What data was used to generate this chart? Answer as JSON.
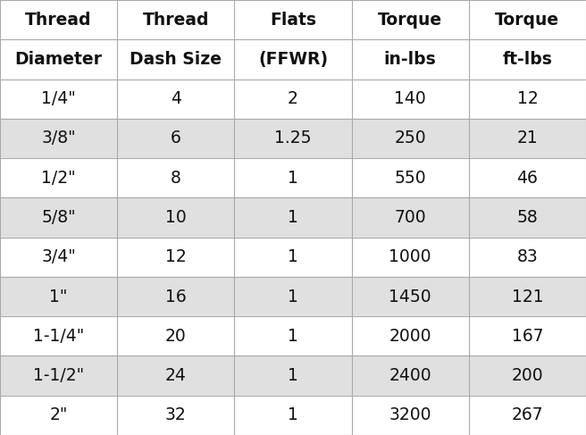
{
  "col_headers_line1": [
    "Thread",
    "Thread",
    "Flats",
    "Torque",
    "Torque"
  ],
  "col_headers_line2": [
    "Diameter",
    "Dash Size",
    "(FFWR)",
    "in-lbs",
    "ft-lbs"
  ],
  "rows": [
    [
      "1/4\"",
      "4",
      "2",
      "140",
      "12"
    ],
    [
      "3/8\"",
      "6",
      "1.25",
      "250",
      "21"
    ],
    [
      "1/2\"",
      "8",
      "1",
      "550",
      "46"
    ],
    [
      "5/8\"",
      "10",
      "1",
      "700",
      "58"
    ],
    [
      "3/4\"",
      "12",
      "1",
      "1000",
      "83"
    ],
    [
      "1\"",
      "16",
      "1",
      "1450",
      "121"
    ],
    [
      "1-1/4\"",
      "20",
      "1",
      "2000",
      "167"
    ],
    [
      "1-1/2\"",
      "24",
      "1",
      "2400",
      "200"
    ],
    [
      "2\"",
      "32",
      "1",
      "3200",
      "267"
    ]
  ],
  "header_bg": "#ffffff",
  "row_bg_even": "#ffffff",
  "row_bg_odd": "#e0e0e0",
  "header_font_size": 13.5,
  "cell_font_size": 13.5,
  "text_color": "#111111",
  "border_color": "#aaaaaa",
  "fig_bg": "#ffffff",
  "num_cols": 5,
  "col_bounds": [
    0.0,
    0.2,
    0.4,
    0.6,
    0.8,
    1.0
  ]
}
